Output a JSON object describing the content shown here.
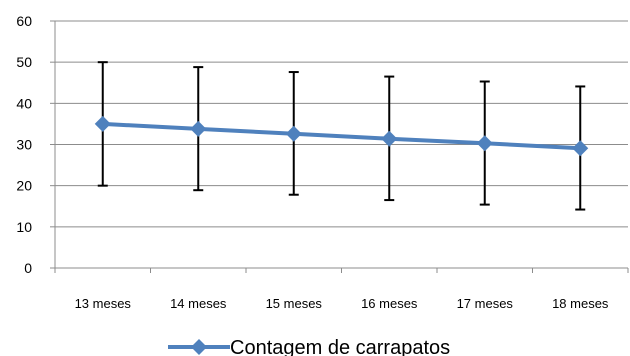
{
  "chart_data": {
    "type": "line",
    "title": "",
    "xlabel": "",
    "ylabel": "",
    "ylim": [
      0,
      60
    ],
    "yticks": [
      0,
      10,
      20,
      30,
      40,
      50,
      60
    ],
    "grid": "horizontal",
    "legend_position": "bottom",
    "categories": [
      "13 meses",
      "14 meses",
      "15 meses",
      "16 meses",
      "17 meses",
      "18 meses"
    ],
    "series": [
      {
        "name": "Contagem de carrapatos",
        "color": "#4F81BD",
        "marker": "diamond",
        "values": [
          35.0,
          33.8,
          32.6,
          31.4,
          30.3,
          29.1
        ],
        "error_low": [
          20.0,
          18.9,
          17.8,
          16.5,
          15.4,
          14.2
        ],
        "error_high": [
          50.0,
          48.8,
          47.6,
          46.5,
          45.3,
          44.1
        ]
      }
    ]
  }
}
